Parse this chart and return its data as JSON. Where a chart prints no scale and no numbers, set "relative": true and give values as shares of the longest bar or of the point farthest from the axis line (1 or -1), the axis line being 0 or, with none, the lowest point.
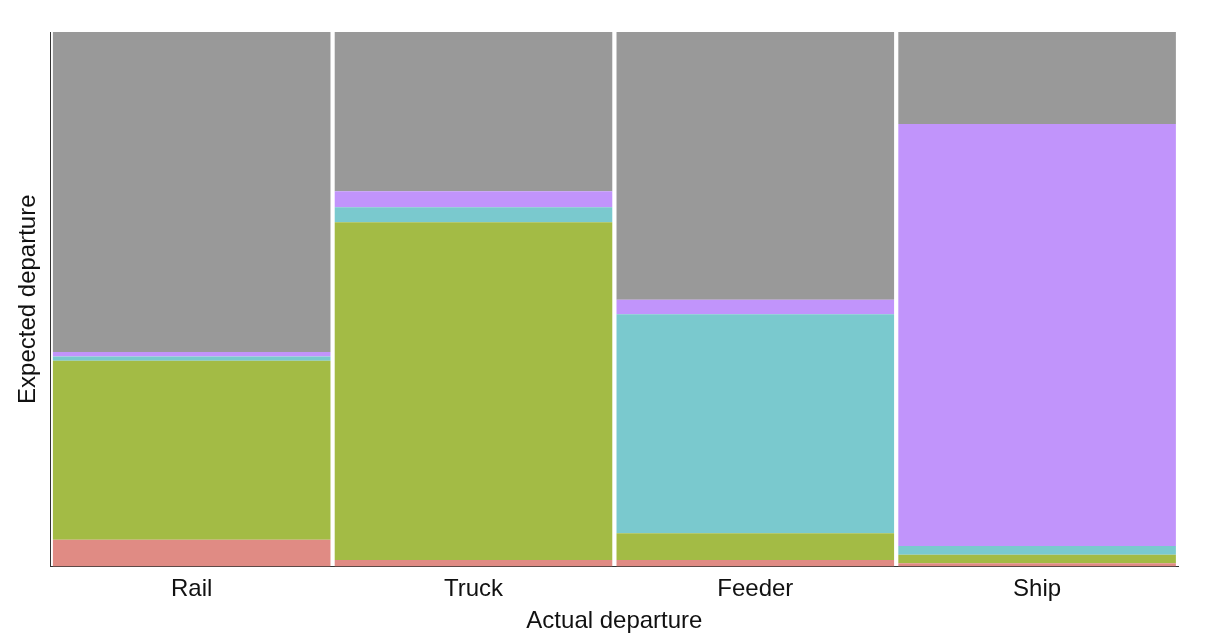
{
  "chart_data": {
    "type": "bar",
    "stacked": true,
    "relative": true,
    "xlabel": "Actual departure",
    "ylabel": "Expected departure",
    "grid": false,
    "legend": false,
    "categories": [
      "Rail",
      "Truck",
      "Feeder",
      "Ship"
    ],
    "series": [
      {
        "color": "#e08b84",
        "values": [
          0.05,
          0.012,
          0.012,
          0.006
        ]
      },
      {
        "color": "#a3bb45",
        "values": [
          0.335,
          0.632,
          0.05,
          0.016
        ]
      },
      {
        "color": "#7ac9ce",
        "values": [
          0.008,
          0.028,
          0.41,
          0.016
        ]
      },
      {
        "color": "#c194fb",
        "values": [
          0.008,
          0.03,
          0.027,
          0.79
        ]
      },
      {
        "color": "#999999",
        "values": [
          0.599,
          0.298,
          0.501,
          0.172
        ]
      }
    ]
  }
}
